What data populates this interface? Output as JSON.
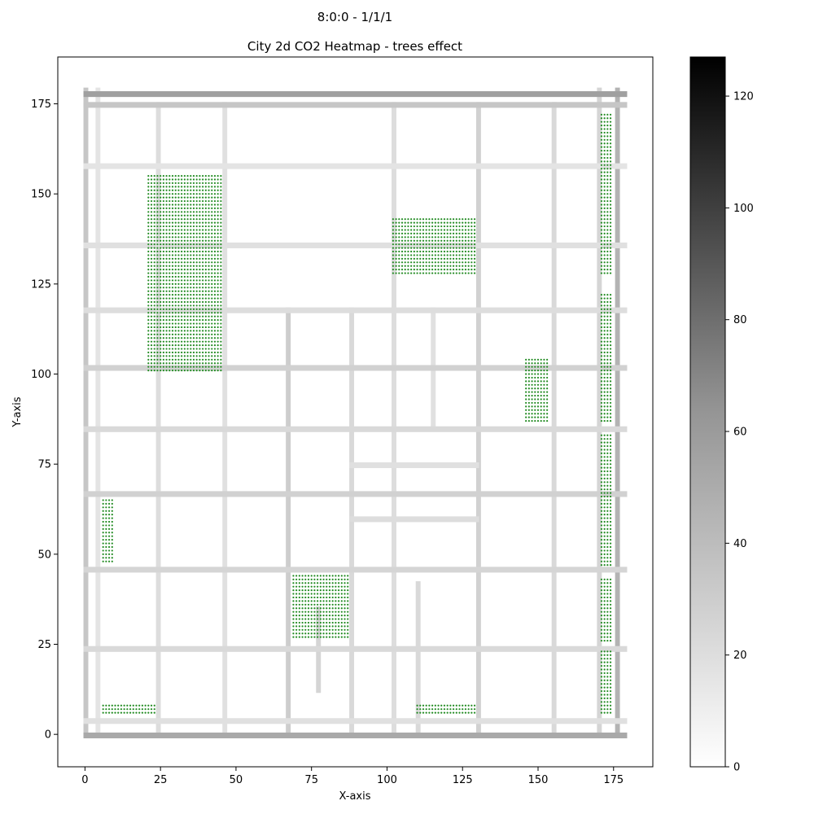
{
  "figure": {
    "suptitle": "8:0:0 - 1/1/1",
    "title": "City 2d CO2 Heatmap - trees effect"
  },
  "chart_data": {
    "type": "heatmap",
    "title": "City 2d CO2 Heatmap - trees effect",
    "xlabel": "X-axis",
    "ylabel": "Y-axis",
    "xlim": [
      -9,
      188
    ],
    "ylim": [
      -9,
      188
    ],
    "x_ticks": [
      0,
      25,
      50,
      75,
      100,
      125,
      150,
      175
    ],
    "y_ticks": [
      0,
      25,
      50,
      75,
      100,
      125,
      150,
      175
    ],
    "grid_extent": [
      0,
      179,
      0,
      179
    ],
    "colormap": "Greys",
    "colorbar": {
      "min": 0,
      "max": 127,
      "ticks": [
        0,
        20,
        40,
        60,
        80,
        100,
        120
      ]
    },
    "roads": {
      "vertical": [
        {
          "x": 0,
          "y0": 0,
          "y1": 179,
          "level": 30
        },
        {
          "x": 4,
          "y0": 0,
          "y1": 179,
          "level": 14
        },
        {
          "x": 24,
          "y0": 0,
          "y1": 175,
          "level": 18
        },
        {
          "x": 46,
          "y0": 0,
          "y1": 175,
          "level": 16
        },
        {
          "x": 67,
          "y0": 0,
          "y1": 118,
          "level": 26
        },
        {
          "x": 77,
          "y0": 12,
          "y1": 35,
          "level": 22
        },
        {
          "x": 88,
          "y0": 0,
          "y1": 118,
          "level": 20
        },
        {
          "x": 102,
          "y0": 0,
          "y1": 175,
          "level": 18
        },
        {
          "x": 110,
          "y0": 0,
          "y1": 42,
          "level": 20
        },
        {
          "x": 115,
          "y0": 85,
          "y1": 118,
          "level": 16
        },
        {
          "x": 130,
          "y0": 0,
          "y1": 175,
          "level": 24
        },
        {
          "x": 155,
          "y0": 0,
          "y1": 175,
          "level": 20
        },
        {
          "x": 170,
          "y0": 0,
          "y1": 179,
          "level": 22
        },
        {
          "x": 176,
          "y0": 0,
          "y1": 179,
          "level": 40
        }
      ],
      "horizontal": [
        {
          "y": 0,
          "x0": 0,
          "x1": 179,
          "level": 45
        },
        {
          "y": 4,
          "x0": 0,
          "x1": 179,
          "level": 16
        },
        {
          "y": 24,
          "x0": 0,
          "x1": 179,
          "level": 20
        },
        {
          "y": 46,
          "x0": 0,
          "x1": 179,
          "level": 22
        },
        {
          "y": 67,
          "x0": 0,
          "x1": 179,
          "level": 24
        },
        {
          "y": 85,
          "x0": 0,
          "x1": 179,
          "level": 20
        },
        {
          "y": 102,
          "x0": 0,
          "x1": 179,
          "level": 24
        },
        {
          "y": 118,
          "x0": 0,
          "x1": 179,
          "level": 18
        },
        {
          "y": 136,
          "x0": 0,
          "x1": 179,
          "level": 16
        },
        {
          "y": 158,
          "x0": 0,
          "x1": 179,
          "level": 14
        },
        {
          "y": 175,
          "x0": 0,
          "x1": 179,
          "level": 30
        },
        {
          "y": 178,
          "x0": 0,
          "x1": 179,
          "level": 50
        },
        {
          "y": 60,
          "x0": 88,
          "x1": 130,
          "level": 18
        },
        {
          "y": 75,
          "x0": 88,
          "x1": 130,
          "level": 16
        }
      ]
    },
    "tree_zones": [
      {
        "x0": 21,
        "x1": 45,
        "y0": 101,
        "y1": 155
      },
      {
        "x0": 102,
        "x1": 129,
        "y0": 128,
        "y1": 143
      },
      {
        "x0": 146,
        "x1": 153,
        "y0": 87,
        "y1": 104
      },
      {
        "x0": 171,
        "x1": 174,
        "y0": 128,
        "y1": 172
      },
      {
        "x0": 171,
        "x1": 174,
        "y0": 87,
        "y1": 122
      },
      {
        "x0": 171,
        "x1": 174,
        "y0": 47,
        "y1": 83
      },
      {
        "x0": 171,
        "x1": 174,
        "y0": 26,
        "y1": 43
      },
      {
        "x0": 171,
        "x1": 174,
        "y0": 6,
        "y1": 23
      },
      {
        "x0": 6,
        "x1": 9,
        "y0": 48,
        "y1": 65
      },
      {
        "x0": 69,
        "x1": 87,
        "y0": 27,
        "y1": 44
      },
      {
        "x0": 6,
        "x1": 23,
        "y0": 6,
        "y1": 8
      },
      {
        "x0": 110,
        "x1": 129,
        "y0": 6,
        "y1": 8
      }
    ],
    "tree_color": "#228b22"
  }
}
